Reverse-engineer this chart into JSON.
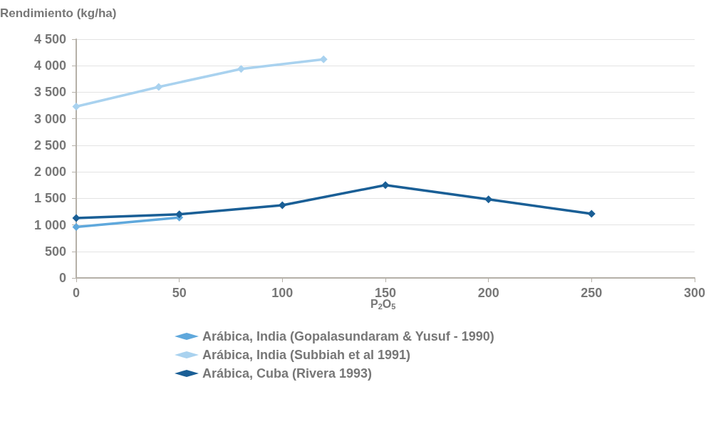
{
  "chart_data": {
    "type": "line",
    "ylabel": "Rendimiento (kg/ha)",
    "xlabel": "P$_{2}$O$_{5}$",
    "xlim": [
      0,
      300
    ],
    "xticks": [
      0,
      50,
      100,
      150,
      200,
      250,
      300
    ],
    "ylim": [
      0,
      4500
    ],
    "yticks": [
      {
        "value": 0,
        "label": "0"
      },
      {
        "value": 500,
        "label": "500"
      },
      {
        "value": 1000,
        "label": "1 000"
      },
      {
        "value": 1500,
        "label": "1 500"
      },
      {
        "value": 2000,
        "label": "2 000"
      },
      {
        "value": 2500,
        "label": "2 500"
      },
      {
        "value": 3000,
        "label": "3 000"
      },
      {
        "value": 3500,
        "label": "3 500"
      },
      {
        "value": 4000,
        "label": "4 000"
      },
      {
        "value": 4500,
        "label": "4 500"
      }
    ],
    "grid": "y",
    "legend": "bottom",
    "marker": "diamond",
    "series": [
      {
        "name": "Arábica, India (Gopalasundaram & Yusuf - 1990)",
        "color": "#5fa8dc",
        "x": [
          0,
          50
        ],
        "values": [
          960,
          1140
        ]
      },
      {
        "name": "Arábica, India (Subbiah et al 1991)",
        "color": "#a9d2ef",
        "x": [
          0,
          40,
          80,
          120
        ],
        "values": [
          3230,
          3600,
          3940,
          4120
        ]
      },
      {
        "name": "Arábica, Cuba (Rivera 1993)",
        "color": "#1a5f96",
        "x": [
          0,
          50,
          100,
          150,
          200,
          250
        ],
        "values": [
          1130,
          1200,
          1370,
          1750,
          1480,
          1210
        ]
      }
    ]
  }
}
